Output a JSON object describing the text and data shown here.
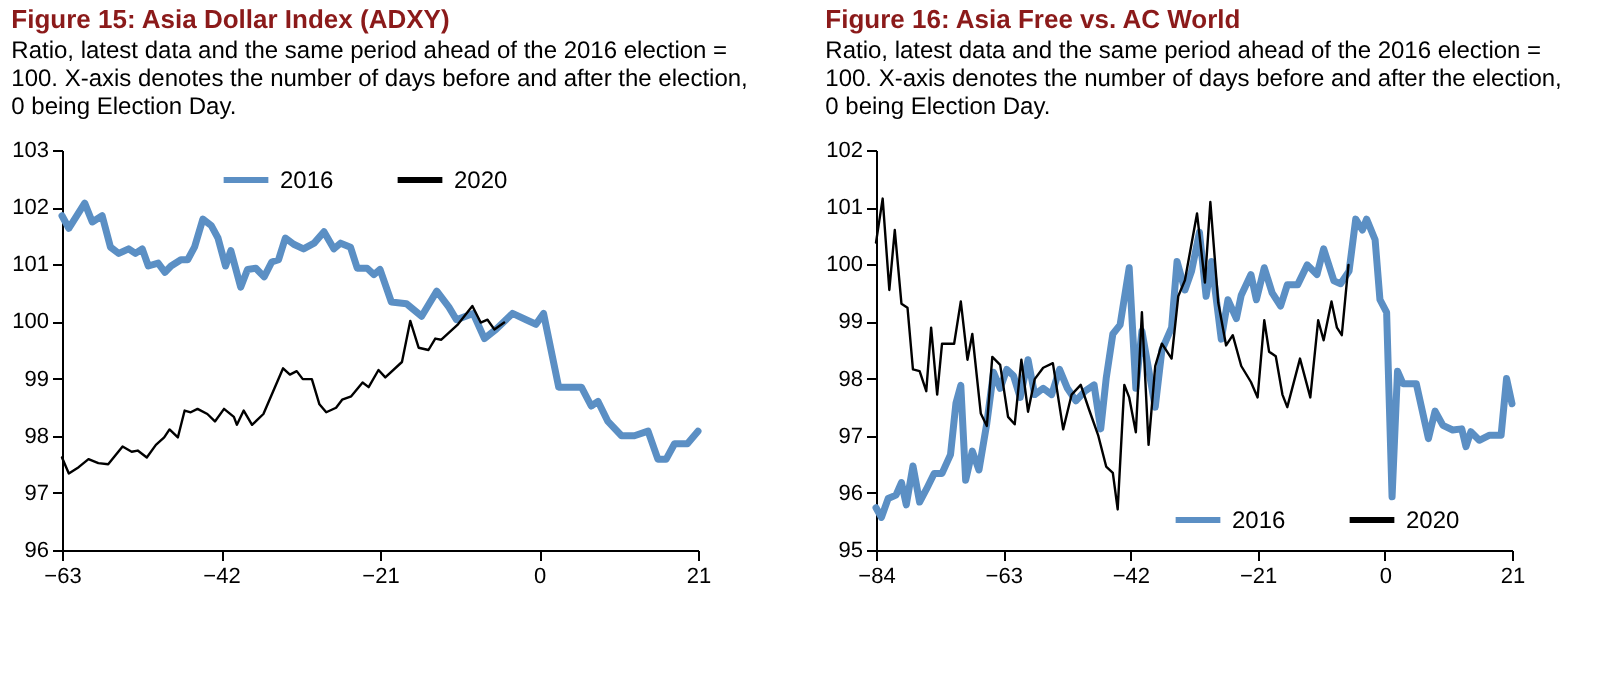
{
  "chart_data": [
    {
      "type": "line",
      "title": "Figure 15: Asia Dollar Index (ADXY)",
      "subtitle": "Ratio, latest data and the same period ahead of the 2016 election = 100. X-axis denotes the number of days before and after the election, 0 being Election Day.",
      "xlim": [
        -63,
        21
      ],
      "xticks": [
        -63,
        -42,
        -21,
        0,
        21
      ],
      "ylim": [
        96,
        103
      ],
      "yticks": [
        96,
        97,
        98,
        99,
        100,
        101,
        102,
        103
      ],
      "grid": false,
      "legend": "top",
      "series": [
        {
          "name": "2016",
          "color": "#5b8fc4",
          "x": [
            -63,
            -62.1,
            -60,
            -59,
            -57.7,
            -56.6,
            -55.5,
            -54.2,
            -53.3,
            -52.4,
            -51.6,
            -50.3,
            -49.4,
            -48.6,
            -47.3,
            -46.4,
            -45.5,
            -44.4,
            -43.3,
            -42.4,
            -41.4,
            -40.7,
            -39.4,
            -38.5,
            -37.4,
            -36.3,
            -35.3,
            -34.4,
            -33.5,
            -32.4,
            -31.1,
            -29.7,
            -28.4,
            -27.1,
            -26.2,
            -24.9,
            -24,
            -22.7,
            -21.8,
            -21,
            -19.5,
            -17.5,
            -15.5,
            -13.5,
            -11.9,
            -10.9,
            -8.7,
            -7.2,
            -5.7,
            -3.5,
            -1.7,
            -0.4,
            0.6,
            2.6,
            5.6,
            6.9,
            7.8,
            9.1,
            10.9,
            12.6,
            14.4,
            15.7,
            16.8,
            17.9,
            19.6,
            21
          ],
          "values": [
            101.85,
            101.63,
            102.07,
            101.74,
            101.85,
            101.3,
            101.19,
            101.27,
            101.19,
            101.27,
            100.97,
            101.02,
            100.86,
            100.97,
            101.08,
            101.08,
            101.3,
            101.79,
            101.68,
            101.46,
            100.97,
            101.24,
            100.6,
            100.91,
            100.93,
            100.78,
            101.04,
            101.08,
            101.46,
            101.35,
            101.27,
            101.37,
            101.57,
            101.27,
            101.37,
            101.3,
            100.93,
            100.93,
            100.82,
            100.91,
            100.34,
            100.31,
            100.09,
            100.53,
            100.25,
            100.03,
            100.14,
            99.7,
            99.86,
            100.14,
            100.03,
            99.95,
            100.14,
            98.85,
            98.85,
            98.52,
            98.6,
            98.25,
            98.0,
            98.0,
            98.08,
            97.59,
            97.59,
            97.86,
            97.86,
            98.08
          ]
        },
        {
          "name": "2020",
          "color": "#000000",
          "x": [
            -63,
            -62.1,
            -60.8,
            -59.5,
            -58.2,
            -56.9,
            -55,
            -53.8,
            -53,
            -51.8,
            -50.6,
            -49.5,
            -48.8,
            -47.7,
            -46.8,
            -46,
            -45.1,
            -43.8,
            -42.8,
            -41.6,
            -40.3,
            -39.9,
            -39,
            -37.9,
            -36.4,
            -33.8,
            -32.9,
            -32.0,
            -31.2,
            -30,
            -29,
            -28.1,
            -26.8,
            -26,
            -24.8,
            -23.3,
            -22.5,
            -21.2,
            -20.3,
            -18.1,
            -17,
            -15.9,
            -14.6,
            -13.7,
            -12.9,
            -10.7,
            -8.8,
            -7.7,
            -6.8,
            -5.9,
            -4.6
          ],
          "values": [
            97.62,
            97.34,
            97.45,
            97.59,
            97.52,
            97.5,
            97.81,
            97.72,
            97.74,
            97.62,
            97.84,
            97.97,
            98.11,
            97.97,
            98.44,
            98.41,
            98.47,
            98.38,
            98.25,
            98.47,
            98.33,
            98.19,
            98.44,
            98.19,
            98.38,
            99.18,
            99.07,
            99.13,
            98.99,
            98.99,
            98.55,
            98.41,
            98.49,
            98.63,
            98.69,
            98.93,
            98.85,
            99.15,
            99.02,
            99.29,
            100.01,
            99.54,
            99.5,
            99.7,
            99.68,
            99.95,
            100.27,
            99.98,
            100.03,
            99.86,
            99.98
          ]
        }
      ]
    },
    {
      "type": "line",
      "title": "Figure 16: Asia Free vs. AC World",
      "subtitle": "Ratio, latest data and the same period ahead of the 2016 election = 100. X-axis denotes the number of days before and after the election, 0 being Election Day.",
      "xlim": [
        -84,
        21
      ],
      "xticks": [
        -84,
        -63,
        -42,
        -21,
        0,
        21
      ],
      "ylim": [
        95,
        102
      ],
      "yticks": [
        95,
        96,
        97,
        98,
        99,
        100,
        101,
        102
      ],
      "grid": false,
      "legend": "bottom right",
      "series": [
        {
          "name": "2016",
          "color": "#5b8fc4",
          "x": [
            -84,
            -83.1,
            -82,
            -80.7,
            -79.8,
            -79,
            -77.9,
            -76.8,
            -75.7,
            -74.4,
            -73.1,
            -71.7,
            -70.8,
            -70,
            -69.2,
            -68.1,
            -67,
            -65.7,
            -64.6,
            -63.5,
            -62.4,
            -61.3,
            -60.2,
            -58.9,
            -57.8,
            -56.4,
            -55,
            -53.7,
            -52.4,
            -51,
            -49.5,
            -48,
            -46.9,
            -46,
            -44.9,
            -43.7,
            -42.2,
            -41.1,
            -40.1,
            -37.9,
            -36.8,
            -35.2,
            -34.3,
            -33.0,
            -31.9,
            -30.6,
            -29.5,
            -28.6,
            -27,
            -25.9,
            -24.5,
            -23.7,
            -22.1,
            -21.2,
            -19.9,
            -18.6,
            -17.2,
            -16.1,
            -14.4,
            -12.8,
            -11.2,
            -10.1,
            -8.4,
            -7.3,
            -5.9,
            -4.8,
            -3.7,
            -3.0,
            -1.6,
            -0.8,
            0.3,
            1.2,
            2.1,
            3.0,
            5.2,
            7.2,
            8.3,
            9.6,
            11.2,
            12.7,
            13.4,
            14.2,
            15.6,
            17.3,
            19.2,
            20.1,
            21
          ],
          "values": [
            95.74,
            95.57,
            95.9,
            95.96,
            96.18,
            95.79,
            96.47,
            95.84,
            96.06,
            96.34,
            96.34,
            96.67,
            97.57,
            97.88,
            96.22,
            96.73,
            96.4,
            97.22,
            98.11,
            97.83,
            98.16,
            98.05,
            97.67,
            98.33,
            97.72,
            97.83,
            97.72,
            98.16,
            97.83,
            97.61,
            97.78,
            97.89,
            97.12,
            98.0,
            98.78,
            98.94,
            99.94,
            97.83,
            98.83,
            97.5,
            98.5,
            98.89,
            100.05,
            99.55,
            99.88,
            100.56,
            99.44,
            100.05,
            98.69,
            99.38,
            99.05,
            99.46,
            99.82,
            99.38,
            99.94,
            99.5,
            99.27,
            99.64,
            99.64,
            99.99,
            99.82,
            100.27,
            99.71,
            99.66,
            99.88,
            100.79,
            100.6,
            100.79,
            100.43,
            99.38,
            99.16,
            95.93,
            98.13,
            97.91,
            97.91,
            96.95,
            97.43,
            97.18,
            97.1,
            97.12,
            96.81,
            97.07,
            96.92,
            97.01,
            97.01,
            98.0,
            97.56
          ]
        },
        {
          "name": "2020",
          "color": "#000000",
          "x": [
            -84,
            -82.9,
            -81.8,
            -80.9,
            -79.8,
            -78.8,
            -77.9,
            -76.8,
            -75.7,
            -74.9,
            -73.9,
            -73.1,
            -71.1,
            -70,
            -68.9,
            -68.1,
            -66.7,
            -65.7,
            -64.8,
            -63.5,
            -62.2,
            -61.1,
            -60.0,
            -58.9,
            -57.8,
            -56.4,
            -54.8,
            -53.1,
            -51.7,
            -50.2,
            -48.8,
            -47.3,
            -46,
            -44.9,
            -44.1,
            -43,
            -42.2,
            -41.1,
            -40.1,
            -39,
            -37.9,
            -36.8,
            -35.2,
            -34.1,
            -33,
            -31,
            -29.7,
            -28.8,
            -27.5,
            -26.2,
            -25.1,
            -23.7,
            -22.1,
            -21,
            -19.9,
            -19.1,
            -18.0,
            -16.9,
            -16.1,
            -14.0,
            -12.3,
            -11.0,
            -10.1,
            -8.8,
            -7.9,
            -7.1,
            -6.0
          ],
          "values": [
            100.38,
            101.15,
            99.55,
            100.6,
            99.31,
            99.24,
            98.16,
            98.13,
            97.78,
            98.89,
            97.72,
            98.61,
            98.61,
            99.35,
            98.33,
            98.78,
            97.39,
            97.17,
            98.38,
            98.24,
            97.33,
            97.2,
            98.33,
            97.42,
            97.99,
            98.19,
            98.27,
            97.11,
            97.72,
            97.89,
            97.45,
            97.0,
            96.46,
            96.35,
            95.71,
            97.89,
            97.67,
            97.06,
            99.16,
            96.84,
            98.22,
            98.61,
            98.35,
            99.44,
            99.72,
            100.89,
            99.68,
            101.09,
            99.33,
            98.58,
            98.76,
            98.22,
            97.94,
            97.67,
            99.02,
            98.47,
            98.39,
            97.72,
            97.5,
            98.35,
            97.67,
            99.02,
            98.67,
            99.35,
            98.89,
            98.76,
            99.99
          ]
        }
      ]
    }
  ]
}
